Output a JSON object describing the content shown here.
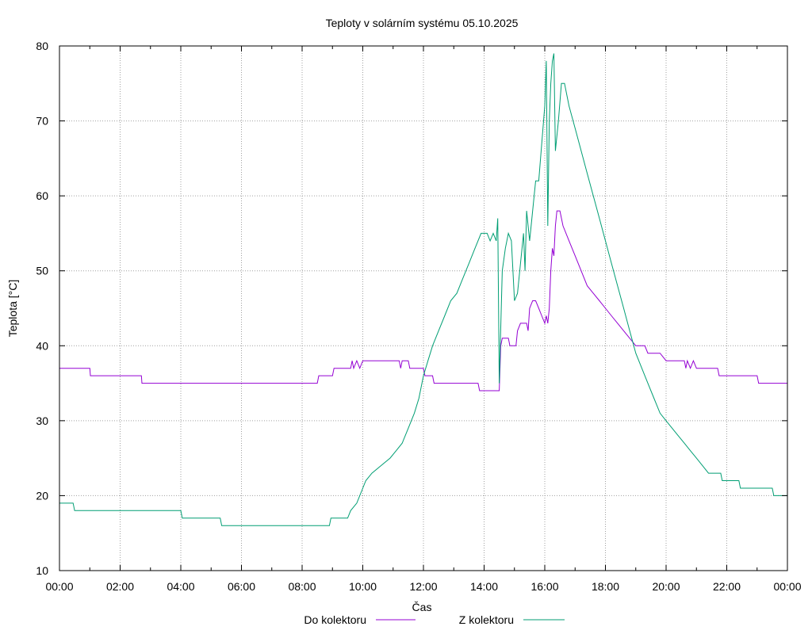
{
  "chart_data": {
    "type": "line",
    "title": "Teploty v solárním systému 05.10.2025",
    "xlabel": "Čas",
    "ylabel": "Teplota [°C]",
    "xlim": [
      0,
      24
    ],
    "ylim": [
      10,
      80
    ],
    "x_ticks": [
      0,
      2,
      4,
      6,
      8,
      10,
      12,
      14,
      16,
      18,
      20,
      22,
      24
    ],
    "x_tick_labels": [
      "00:00",
      "02:00",
      "04:00",
      "06:00",
      "08:00",
      "10:00",
      "12:00",
      "14:00",
      "16:00",
      "18:00",
      "20:00",
      "22:00",
      "00:00"
    ],
    "y_ticks": [
      10,
      20,
      30,
      40,
      50,
      60,
      70,
      80
    ],
    "y_tick_labels": [
      "10",
      "20",
      "30",
      "40",
      "50",
      "60",
      "70",
      "80"
    ],
    "grid": true,
    "legend_position": "bottom-center",
    "series": [
      {
        "name": "Do kolektoru",
        "color": "#9400d3",
        "points": [
          [
            0,
            37
          ],
          [
            1.0,
            37
          ],
          [
            1.02,
            36
          ],
          [
            2.7,
            36
          ],
          [
            2.72,
            35
          ],
          [
            8.5,
            35
          ],
          [
            8.55,
            36
          ],
          [
            9.0,
            36
          ],
          [
            9.05,
            37
          ],
          [
            9.6,
            37
          ],
          [
            9.65,
            38
          ],
          [
            9.7,
            37
          ],
          [
            9.8,
            38
          ],
          [
            9.9,
            37
          ],
          [
            10.0,
            38
          ],
          [
            11.2,
            38
          ],
          [
            11.25,
            37
          ],
          [
            11.3,
            38
          ],
          [
            11.5,
            38
          ],
          [
            11.55,
            37
          ],
          [
            12.0,
            37
          ],
          [
            12.05,
            36
          ],
          [
            12.3,
            36
          ],
          [
            12.35,
            35
          ],
          [
            13.8,
            35
          ],
          [
            13.85,
            34
          ],
          [
            14.5,
            34
          ],
          [
            14.55,
            40
          ],
          [
            14.6,
            41
          ],
          [
            14.8,
            41
          ],
          [
            14.85,
            40
          ],
          [
            15.05,
            40
          ],
          [
            15.1,
            42
          ],
          [
            15.2,
            43
          ],
          [
            15.4,
            43
          ],
          [
            15.45,
            42
          ],
          [
            15.5,
            45
          ],
          [
            15.6,
            46
          ],
          [
            15.7,
            46
          ],
          [
            15.8,
            45
          ],
          [
            15.9,
            44
          ],
          [
            16.0,
            43
          ],
          [
            16.05,
            44
          ],
          [
            16.1,
            43
          ],
          [
            16.15,
            45
          ],
          [
            16.2,
            50
          ],
          [
            16.25,
            53
          ],
          [
            16.3,
            52
          ],
          [
            16.35,
            56
          ],
          [
            16.4,
            58
          ],
          [
            16.5,
            58
          ],
          [
            16.6,
            56
          ],
          [
            16.8,
            54
          ],
          [
            17.0,
            52
          ],
          [
            17.2,
            50
          ],
          [
            17.4,
            48
          ],
          [
            17.6,
            47
          ],
          [
            17.8,
            46
          ],
          [
            18.0,
            45
          ],
          [
            18.2,
            44
          ],
          [
            18.4,
            43
          ],
          [
            18.6,
            42
          ],
          [
            18.8,
            41
          ],
          [
            19.0,
            40
          ],
          [
            19.2,
            40
          ],
          [
            19.3,
            40
          ],
          [
            19.4,
            39
          ],
          [
            19.8,
            39
          ],
          [
            20.0,
            38
          ],
          [
            20.6,
            38
          ],
          [
            20.65,
            37
          ],
          [
            20.7,
            38
          ],
          [
            20.8,
            37
          ],
          [
            20.9,
            38
          ],
          [
            21.0,
            37
          ],
          [
            21.7,
            37
          ],
          [
            21.75,
            36
          ],
          [
            23.0,
            36
          ],
          [
            23.05,
            35
          ],
          [
            24,
            35
          ]
        ]
      },
      {
        "name": "Z kolektoru",
        "color": "#009e73",
        "points": [
          [
            0,
            19
          ],
          [
            0.45,
            19
          ],
          [
            0.5,
            18
          ],
          [
            4.0,
            18
          ],
          [
            4.05,
            17
          ],
          [
            5.3,
            17
          ],
          [
            5.35,
            16
          ],
          [
            8.9,
            16
          ],
          [
            8.95,
            17
          ],
          [
            9.5,
            17
          ],
          [
            9.6,
            18
          ],
          [
            9.8,
            19
          ],
          [
            9.9,
            20
          ],
          [
            10.0,
            21
          ],
          [
            10.1,
            22
          ],
          [
            10.3,
            23
          ],
          [
            10.6,
            24
          ],
          [
            10.9,
            25
          ],
          [
            11.1,
            26
          ],
          [
            11.3,
            27
          ],
          [
            11.5,
            29
          ],
          [
            11.7,
            31
          ],
          [
            11.85,
            33
          ],
          [
            12.0,
            36
          ],
          [
            12.15,
            38
          ],
          [
            12.3,
            40
          ],
          [
            12.5,
            42
          ],
          [
            12.7,
            44
          ],
          [
            12.9,
            46
          ],
          [
            13.1,
            47
          ],
          [
            13.3,
            49
          ],
          [
            13.5,
            51
          ],
          [
            13.7,
            53
          ],
          [
            13.9,
            55
          ],
          [
            14.1,
            55
          ],
          [
            14.2,
            54
          ],
          [
            14.3,
            55
          ],
          [
            14.4,
            54
          ],
          [
            14.45,
            57
          ],
          [
            14.5,
            35
          ],
          [
            14.6,
            50
          ],
          [
            14.7,
            53
          ],
          [
            14.8,
            55
          ],
          [
            14.9,
            54
          ],
          [
            15.0,
            46
          ],
          [
            15.1,
            47
          ],
          [
            15.2,
            51
          ],
          [
            15.3,
            55
          ],
          [
            15.35,
            50
          ],
          [
            15.4,
            58
          ],
          [
            15.5,
            54
          ],
          [
            15.6,
            58
          ],
          [
            15.7,
            62
          ],
          [
            15.8,
            62
          ],
          [
            15.9,
            67
          ],
          [
            16.0,
            72
          ],
          [
            16.05,
            78
          ],
          [
            16.1,
            56
          ],
          [
            16.15,
            70
          ],
          [
            16.2,
            75
          ],
          [
            16.25,
            78
          ],
          [
            16.3,
            79
          ],
          [
            16.35,
            66
          ],
          [
            16.45,
            70
          ],
          [
            16.55,
            75
          ],
          [
            16.65,
            75
          ],
          [
            16.8,
            72
          ],
          [
            17.0,
            69
          ],
          [
            17.2,
            66
          ],
          [
            17.4,
            63
          ],
          [
            17.6,
            60
          ],
          [
            17.8,
            57
          ],
          [
            18.0,
            54
          ],
          [
            18.2,
            51
          ],
          [
            18.4,
            48
          ],
          [
            18.6,
            45
          ],
          [
            18.8,
            42
          ],
          [
            19.0,
            39
          ],
          [
            19.2,
            37
          ],
          [
            19.4,
            35
          ],
          [
            19.6,
            33
          ],
          [
            19.8,
            31
          ],
          [
            20.0,
            30
          ],
          [
            20.2,
            29
          ],
          [
            20.4,
            28
          ],
          [
            20.6,
            27
          ],
          [
            20.8,
            26
          ],
          [
            21.0,
            25
          ],
          [
            21.2,
            24
          ],
          [
            21.4,
            23
          ],
          [
            21.8,
            23
          ],
          [
            21.85,
            22
          ],
          [
            22.4,
            22
          ],
          [
            22.45,
            21
          ],
          [
            23.5,
            21
          ],
          [
            23.55,
            20
          ],
          [
            24,
            20
          ]
        ]
      }
    ]
  }
}
